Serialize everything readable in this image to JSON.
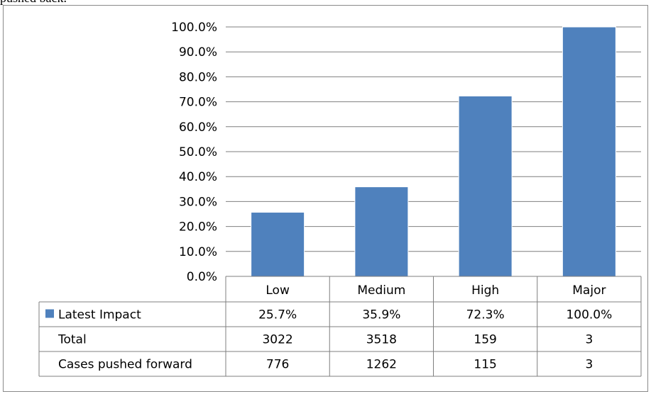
{
  "clipped_caption": "pushed back.",
  "colors": {
    "bar": "#4f81bd",
    "grid": "#7f7f7f",
    "border": "#7f7f7f"
  },
  "chart_data": {
    "type": "bar",
    "categories": [
      "Low",
      "Medium",
      "High",
      "Major"
    ],
    "series": [
      {
        "name": "Latest Impact",
        "values": [
          25.7,
          35.9,
          72.3,
          100.0
        ],
        "labels": [
          "25.7%",
          "35.9%",
          "72.3%",
          "100.0%"
        ]
      }
    ],
    "ylim": [
      0,
      100
    ],
    "yticks": [
      "0.0%",
      "10.0%",
      "20.0%",
      "30.0%",
      "40.0%",
      "50.0%",
      "60.0%",
      "70.0%",
      "80.0%",
      "90.0%",
      "100.0%"
    ],
    "grid": true,
    "legend": "data-table",
    "data_table": {
      "rows": [
        {
          "label": "Latest Impact",
          "legend_key": true,
          "values": [
            "25.7%",
            "35.9%",
            "72.3%",
            "100.0%"
          ]
        },
        {
          "label": "Total",
          "legend_key": false,
          "values": [
            "3022",
            "3518",
            "159",
            "3"
          ]
        },
        {
          "label": "Cases pushed forward",
          "legend_key": false,
          "values": [
            "776",
            "1262",
            "115",
            "3"
          ]
        }
      ]
    }
  }
}
